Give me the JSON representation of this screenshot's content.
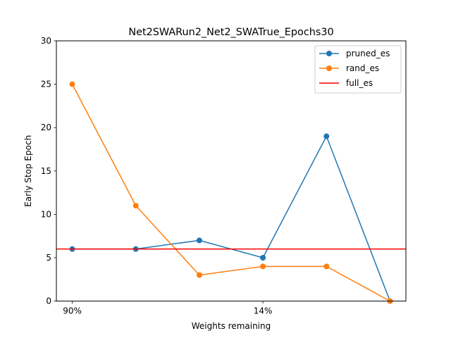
{
  "chart_data": {
    "type": "line",
    "title": "Net2SWARun2_Net2_SWATrue_Epochs30",
    "xlabel": "Weights remaining",
    "ylabel": "Early Stop Epoch",
    "x": [
      0,
      1,
      2,
      3,
      4,
      5
    ],
    "xticks": [
      {
        "x": 0,
        "label": "90%"
      },
      {
        "x": 3,
        "label": "14%"
      }
    ],
    "ylim": [
      0,
      30
    ],
    "yticks": [
      0,
      5,
      10,
      15,
      20,
      25,
      30
    ],
    "series": [
      {
        "name": "pruned_es",
        "color": "#1f77b4",
        "values": [
          6,
          6,
          7,
          5,
          19,
          0
        ]
      },
      {
        "name": "rand_es",
        "color": "#ff7f0e",
        "values": [
          25,
          11,
          3,
          4,
          4,
          0
        ]
      }
    ],
    "hlines": [
      {
        "name": "full_es",
        "color": "#ff0000",
        "y": 6
      }
    ],
    "legend": "top-right",
    "grid": false
  }
}
